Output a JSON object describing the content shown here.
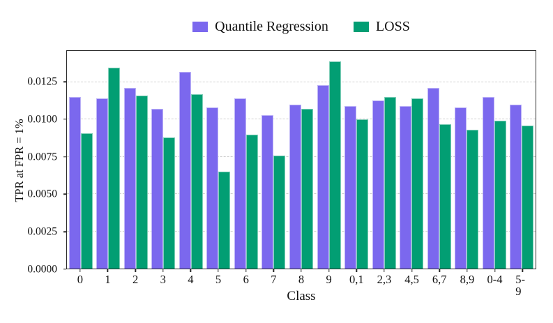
{
  "chart_data": {
    "type": "bar",
    "title": "",
    "xlabel": "Class",
    "ylabel": "TPR at FPR = 1%",
    "categories": [
      "0",
      "1",
      "2",
      "3",
      "4",
      "5",
      "6",
      "7",
      "8",
      "9",
      "0,1",
      "2,3",
      "4,5",
      "6,7",
      "8,9",
      "0-4",
      "5-9"
    ],
    "series": [
      {
        "name": "Quantile Regression",
        "color": "#7B68EE",
        "values": [
          0.0115,
          0.0114,
          0.0121,
          0.0107,
          0.0132,
          0.0108,
          0.0114,
          0.0103,
          0.011,
          0.0123,
          0.0109,
          0.0113,
          0.0109,
          0.0121,
          0.0108,
          0.0115,
          0.011
        ]
      },
      {
        "name": "LOSS",
        "color": "#029E73",
        "values": [
          0.0091,
          0.0135,
          0.0116,
          0.0088,
          0.0117,
          0.0065,
          0.009,
          0.0076,
          0.0107,
          0.0139,
          0.01,
          0.0115,
          0.0114,
          0.0097,
          0.0093,
          0.0099,
          0.0096
        ]
      }
    ],
    "ylim": [
      0,
      0.0146
    ],
    "yticks": [
      "0.0000",
      "0.0025",
      "0.0050",
      "0.0075",
      "0.0100",
      "0.0125"
    ],
    "grid": "horizontal-dashed",
    "legend_position": "top-center",
    "spine_color": "#2a2a2a",
    "gridline_color": "#cfcfcf"
  }
}
